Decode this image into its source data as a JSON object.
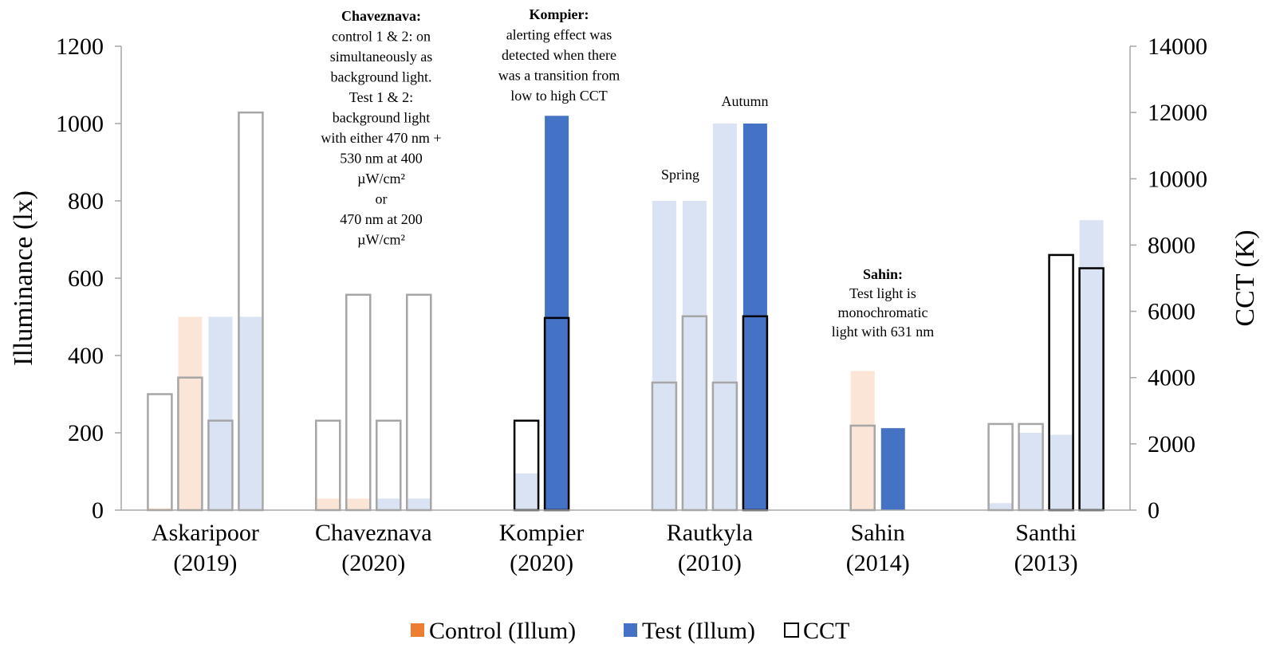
{
  "chart_data": {
    "type": "bar",
    "ylabel_left": "Illuminance (lx)",
    "ylabel_right": "CCT (K)",
    "ylim_left": [
      0,
      1200
    ],
    "ylim_right": [
      0,
      14000
    ],
    "yticks_left": [
      "0",
      "200",
      "400",
      "600",
      "800",
      "1000",
      "1200"
    ],
    "yticks_right": [
      "0",
      "2000",
      "4000",
      "6000",
      "8000",
      "10000",
      "12000",
      "14000"
    ],
    "grid": false,
    "legend_position": "bottom",
    "legend": [
      {
        "label": "Control (Illum)",
        "color": "#ed7d31",
        "kind": "control"
      },
      {
        "label": "Test (Illum)",
        "color": "#4472c4",
        "kind": "test"
      },
      {
        "label": "CCT",
        "color": "#000000",
        "kind": "cct"
      }
    ],
    "colors": {
      "control_light": "#fbe5d6",
      "test_light": "#dae3f3",
      "test_bold": "#4472c4",
      "cct_gray": "#a6a6a6",
      "cct_black": "#000000"
    },
    "groups": [
      {
        "name": "Askaripoor",
        "year": "(2019)",
        "bars": [
          {
            "kind": "control",
            "illum": 5,
            "cct": 3500,
            "emph": false
          },
          {
            "kind": "control",
            "illum": 500,
            "cct": 4000,
            "emph": false
          },
          {
            "kind": "test",
            "illum": 500,
            "cct": 2700,
            "emph": false
          },
          {
            "kind": "test",
            "illum": 500,
            "cct": 12000,
            "emph": false
          }
        ]
      },
      {
        "name": "Chaveznava",
        "year": "(2020)",
        "bars": [
          {
            "kind": "control",
            "illum": 30,
            "cct": 2700,
            "emph": false
          },
          {
            "kind": "control",
            "illum": 30,
            "cct": 6500,
            "emph": false
          },
          {
            "kind": "test",
            "illum": 30,
            "cct": 2700,
            "emph": false
          },
          {
            "kind": "test",
            "illum": 30,
            "cct": 6500,
            "emph": false
          }
        ]
      },
      {
        "name": "Kompier",
        "year": "(2020)",
        "bars": [
          {
            "kind": "test",
            "illum": 95,
            "cct": 2700,
            "emph": true,
            "fill": "light"
          },
          {
            "kind": "test",
            "illum": 1020,
            "cct": 5800,
            "emph": true,
            "fill": "bold"
          }
        ]
      },
      {
        "name": "Rautkyla",
        "year": "(2010)",
        "bars": [
          {
            "kind": "test",
            "illum": 800,
            "cct": 3850,
            "emph": false
          },
          {
            "kind": "test",
            "illum": 800,
            "cct": 5850,
            "emph": false
          },
          {
            "kind": "test",
            "illum": 1000,
            "cct": 3850,
            "emph": false
          },
          {
            "kind": "test",
            "illum": 1000,
            "cct": 5850,
            "emph": true,
            "fill": "bold"
          }
        ]
      },
      {
        "name": "Sahin",
        "year": "(2014)",
        "bars": [
          {
            "kind": "control",
            "illum": 360,
            "cct": 2550,
            "emph": false
          },
          {
            "kind": "test",
            "illum": 212,
            "emph": false,
            "fill": "bold"
          }
        ]
      },
      {
        "name": "Santhi",
        "year": "(2013)",
        "bars": [
          {
            "kind": "test",
            "illum": 18,
            "cct": 2600,
            "emph": false
          },
          {
            "kind": "test",
            "illum": 200,
            "cct": 2600,
            "emph": false
          },
          {
            "kind": "test",
            "illum": 195,
            "cct": 7700,
            "emph": true,
            "fill": "light"
          },
          {
            "kind": "test",
            "illum": 750,
            "cct": 7300,
            "emph": true,
            "fill": "light"
          }
        ]
      }
    ],
    "annotations": {
      "spring": "Spring",
      "autumn": "Autumn",
      "chaveznava_note": {
        "title": "Chaveznava:",
        "lines": [
          "control 1 & 2: on",
          "simultaneously as",
          "background light.",
          "Test 1 & 2:",
          "background light",
          "with either 470 nm +",
          "530 nm at 400",
          "µW/cm²",
          "or",
          "470 nm at 200",
          "µW/cm²"
        ]
      },
      "kompier_note": {
        "title": "Kompier:",
        "lines": [
          "alerting effect was",
          "detected when there",
          "was a transition from",
          "low to high CCT"
        ]
      },
      "sahin_note": {
        "title": "Sahin:",
        "lines": [
          "Test light is",
          "monochromatic",
          "light with 631 nm"
        ]
      }
    }
  }
}
